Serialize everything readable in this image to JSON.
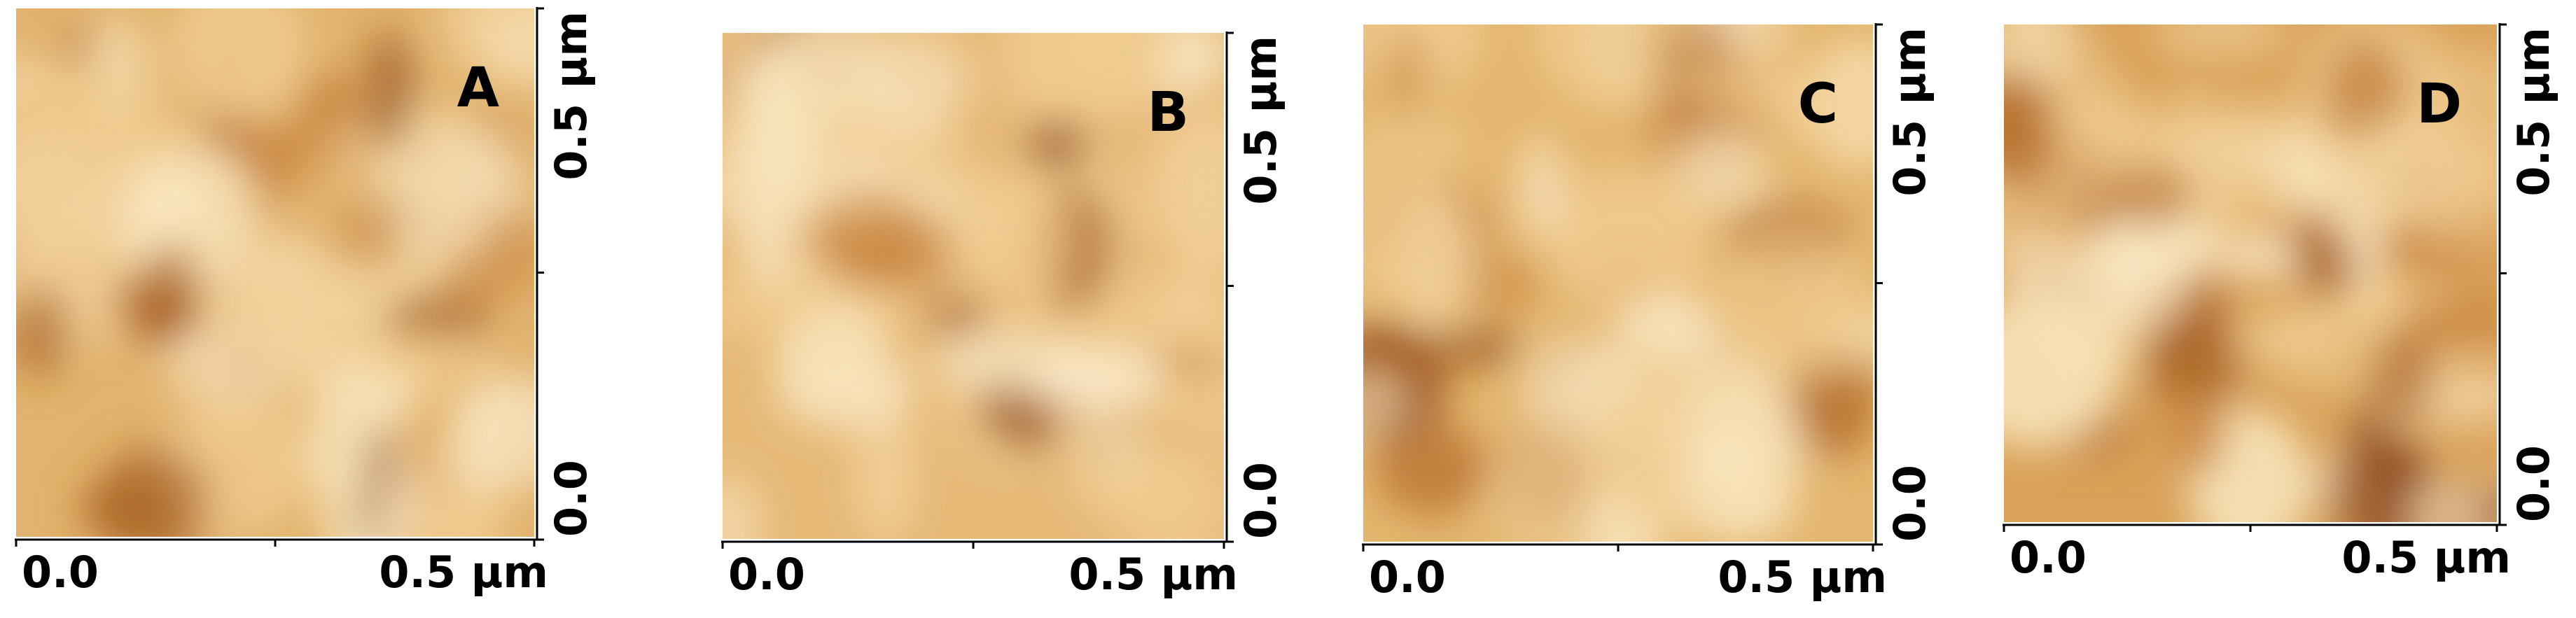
{
  "panels": [
    {
      "label": "A",
      "x_ticks": [
        "0.0",
        "0.5 μm"
      ],
      "y_ticks": [
        "0.0",
        "0.5 μm"
      ]
    },
    {
      "label": "B",
      "x_ticks": [
        "0.0",
        "0.5 μm"
      ],
      "y_ticks": [
        "0.0",
        "0.5 μm"
      ]
    },
    {
      "label": "C",
      "x_ticks": [
        "0.0",
        "0.5 μm"
      ],
      "y_ticks": [
        "0.0",
        "0.5 μm"
      ]
    },
    {
      "label": "D",
      "x_ticks": [
        "0.0",
        "0.5 μm"
      ],
      "y_ticks": [
        "0.0",
        "0.5 μm"
      ]
    }
  ]
}
